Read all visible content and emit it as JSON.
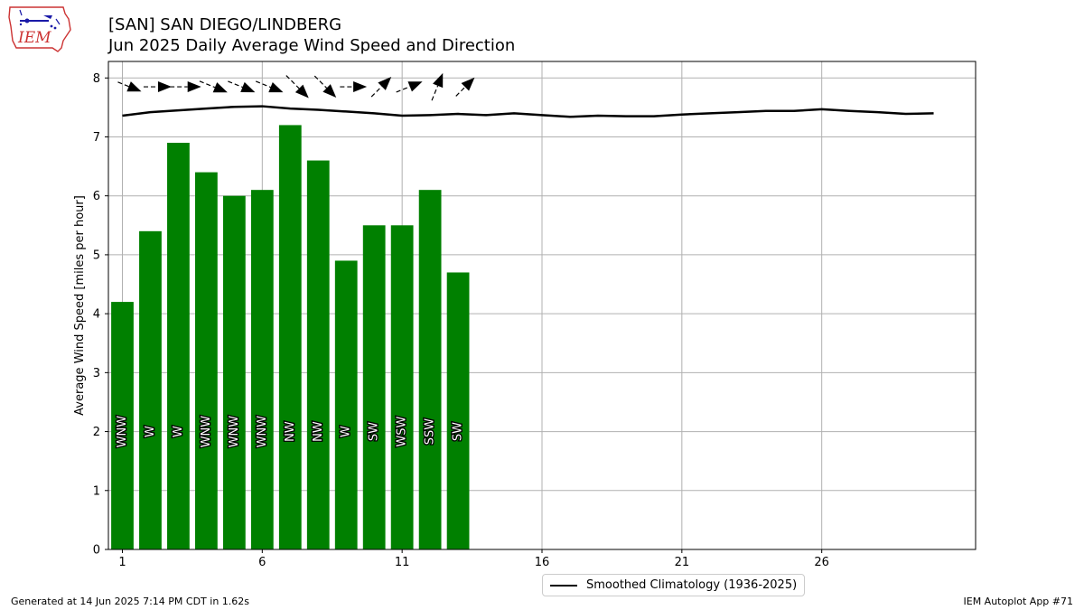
{
  "header": {
    "title_line1": "[SAN] SAN DIEGO/LINDBERG",
    "title_line2": "Jun 2025 Daily Average Wind Speed and Direction"
  },
  "logo": {
    "text": "IEM",
    "icon": "iem-iowa-logo"
  },
  "footer": {
    "left": "Generated at 14 Jun 2025 7:14 PM CDT in 1.62s",
    "right": "IEM Autoplot App #71"
  },
  "legend": {
    "climatology_label": "Smoothed Climatology (1936-2025)"
  },
  "colors": {
    "bar": "#008000",
    "line": "#000000",
    "grid": "#b0b0b0"
  },
  "chart_data": {
    "type": "bar",
    "title": "[SAN] SAN DIEGO/LINDBERG Jun 2025 Daily Average Wind Speed and Direction",
    "xlabel": "",
    "ylabel": "Average Wind Speed [miles per hour]",
    "xlim": [
      0.5,
      31.5
    ],
    "ylim": [
      0,
      8.28
    ],
    "grid": true,
    "legend_placement": "bottom-center",
    "x_ticks": [
      1,
      6,
      11,
      16,
      21,
      26
    ],
    "y_ticks": [
      0,
      1,
      2,
      3,
      4,
      5,
      6,
      7,
      8
    ],
    "series": [
      {
        "type": "bar",
        "days": [
          1,
          2,
          3,
          4,
          5,
          6,
          7,
          8,
          9,
          10,
          11,
          12,
          13
        ],
        "values": [
          4.2,
          5.4,
          6.9,
          6.4,
          6.0,
          6.1,
          7.2,
          6.6,
          4.9,
          5.5,
          5.5,
          6.1,
          4.7
        ],
        "direction_labels": [
          "WNW",
          "W",
          "W",
          "WNW",
          "WNW",
          "WNW",
          "NW",
          "NW",
          "W",
          "SW",
          "WSW",
          "SSW",
          "SW"
        ]
      },
      {
        "type": "line",
        "name": "Smoothed Climatology (1936-2025)",
        "x": [
          1,
          2,
          3,
          4,
          5,
          6,
          7,
          8,
          9,
          10,
          11,
          12,
          13,
          14,
          15,
          16,
          17,
          18,
          19,
          20,
          21,
          22,
          23,
          24,
          25,
          26,
          27,
          28,
          29,
          30
        ],
        "y": [
          7.36,
          7.42,
          7.45,
          7.48,
          7.51,
          7.52,
          7.48,
          7.46,
          7.43,
          7.4,
          7.36,
          7.37,
          7.39,
          7.37,
          7.4,
          7.37,
          7.34,
          7.36,
          7.35,
          7.35,
          7.38,
          7.4,
          7.42,
          7.44,
          7.44,
          7.47,
          7.44,
          7.42,
          7.39,
          7.4
        ]
      }
    ],
    "wind_barbs": {
      "days": [
        1,
        2,
        3,
        4,
        5,
        6,
        7,
        8,
        9,
        10,
        11,
        12,
        13
      ],
      "direction_deg": [
        292,
        270,
        270,
        292,
        292,
        292,
        315,
        315,
        270,
        225,
        248,
        202,
        225
      ],
      "speed_mph": [
        4.2,
        5.4,
        6.9,
        6.4,
        6.0,
        6.1,
        7.2,
        6.6,
        4.9,
        5.5,
        5.5,
        6.1,
        4.7
      ]
    }
  }
}
